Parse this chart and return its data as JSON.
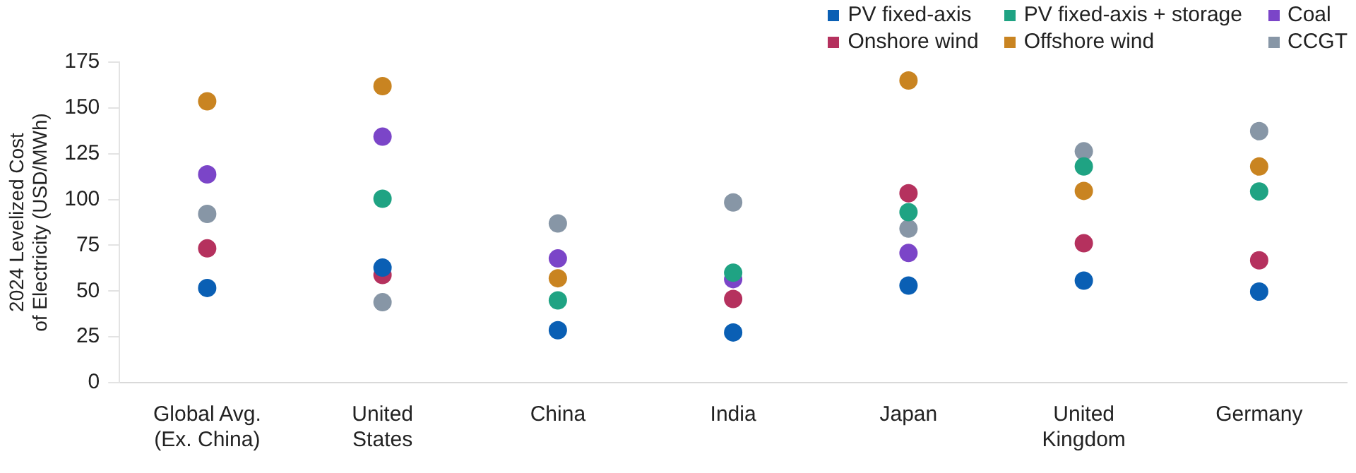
{
  "chart_data": {
    "type": "scatter",
    "ylabel": "2024 Levelized Cost\nof Electricity (USD/MWh)",
    "categories": [
      "Global Avg.\n(Ex. China)",
      "United\nStates",
      "China",
      "India",
      "Japan",
      "United\nKingdom",
      "Germany"
    ],
    "series": [
      {
        "name": "PV fixed-axis",
        "color": "#0a5fb4",
        "values": [
          51.7,
          62.8,
          28.6,
          27.4,
          53.0,
          55.7,
          49.7
        ]
      },
      {
        "name": "PV fixed-axis + storage",
        "color": "#1fa383",
        "values": [
          null,
          100.4,
          44.9,
          60.0,
          93.1,
          118.0,
          104.4
        ]
      },
      {
        "name": "Coal",
        "color": "#7b45c8",
        "values": [
          113.7,
          134.3,
          67.8,
          56.5,
          70.8,
          null,
          null
        ]
      },
      {
        "name": "Onshore wind",
        "color": "#b5315e",
        "values": [
          73.3,
          58.8,
          null,
          45.7,
          103.4,
          76.1,
          66.8
        ]
      },
      {
        "name": "Offshore wind",
        "color": "#c98421",
        "values": [
          153.6,
          161.9,
          57.0,
          null,
          165.0,
          104.7,
          118.0
        ]
      },
      {
        "name": "CCGT",
        "color": "#8796a6",
        "values": [
          92.1,
          43.9,
          86.9,
          98.4,
          84.1,
          126.3,
          137.3
        ]
      }
    ],
    "ylim": [
      0,
      175
    ],
    "yticks": [
      0,
      25,
      50,
      75,
      100,
      125,
      150,
      175
    ],
    "grid": false,
    "legend": "top right",
    "marker": "circle"
  }
}
